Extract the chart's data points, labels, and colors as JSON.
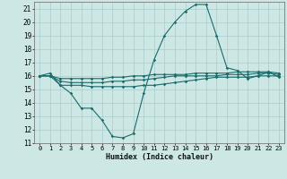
{
  "xlabel": "Humidex (Indice chaleur)",
  "xlim": [
    -0.5,
    23.5
  ],
  "ylim": [
    11,
    21.5
  ],
  "yticks": [
    11,
    12,
    13,
    14,
    15,
    16,
    17,
    18,
    19,
    20,
    21
  ],
  "xticks": [
    0,
    1,
    2,
    3,
    4,
    5,
    6,
    7,
    8,
    9,
    10,
    11,
    12,
    13,
    14,
    15,
    16,
    17,
    18,
    19,
    20,
    21,
    22,
    23
  ],
  "background_color": "#cde8e4",
  "grid_color": "#aacccc",
  "line_color": "#1a6b6b",
  "lines": [
    {
      "x": [
        0,
        1,
        2,
        3,
        4,
        5,
        6,
        7,
        8,
        9,
        10,
        11,
        12,
        13,
        14,
        15,
        16,
        17,
        18,
        19,
        20,
        21,
        22,
        23
      ],
      "y": [
        16.0,
        16.2,
        15.3,
        14.7,
        13.6,
        13.6,
        12.7,
        11.5,
        11.4,
        11.7,
        14.7,
        17.2,
        19.0,
        20.0,
        20.8,
        21.3,
        21.3,
        19.0,
        16.6,
        16.4,
        15.8,
        16.0,
        16.3,
        15.9
      ]
    },
    {
      "x": [
        0,
        1,
        2,
        3,
        4,
        5,
        6,
        7,
        8,
        9,
        10,
        11,
        12,
        13,
        14,
        15,
        16,
        17,
        18,
        19,
        20,
        21,
        22,
        23
      ],
      "y": [
        16.0,
        16.0,
        15.3,
        15.3,
        15.3,
        15.2,
        15.2,
        15.2,
        15.2,
        15.2,
        15.3,
        15.3,
        15.4,
        15.5,
        15.6,
        15.7,
        15.8,
        15.9,
        15.9,
        15.9,
        15.9,
        16.0,
        16.0,
        16.0
      ]
    },
    {
      "x": [
        0,
        1,
        2,
        3,
        4,
        5,
        6,
        7,
        8,
        9,
        10,
        11,
        12,
        13,
        14,
        15,
        16,
        17,
        18,
        19,
        20,
        21,
        22,
        23
      ],
      "y": [
        16.0,
        16.0,
        15.6,
        15.5,
        15.5,
        15.5,
        15.5,
        15.6,
        15.6,
        15.7,
        15.7,
        15.8,
        15.9,
        16.0,
        16.0,
        16.0,
        16.0,
        16.0,
        16.1,
        16.1,
        16.1,
        16.2,
        16.2,
        16.1
      ]
    },
    {
      "x": [
        0,
        1,
        2,
        3,
        4,
        5,
        6,
        7,
        8,
        9,
        10,
        11,
        12,
        13,
        14,
        15,
        16,
        17,
        18,
        19,
        20,
        21,
        22,
        23
      ],
      "y": [
        16.0,
        16.0,
        15.8,
        15.8,
        15.8,
        15.8,
        15.8,
        15.9,
        15.9,
        16.0,
        16.0,
        16.1,
        16.1,
        16.1,
        16.1,
        16.2,
        16.2,
        16.2,
        16.2,
        16.3,
        16.3,
        16.3,
        16.3,
        16.2
      ]
    }
  ]
}
